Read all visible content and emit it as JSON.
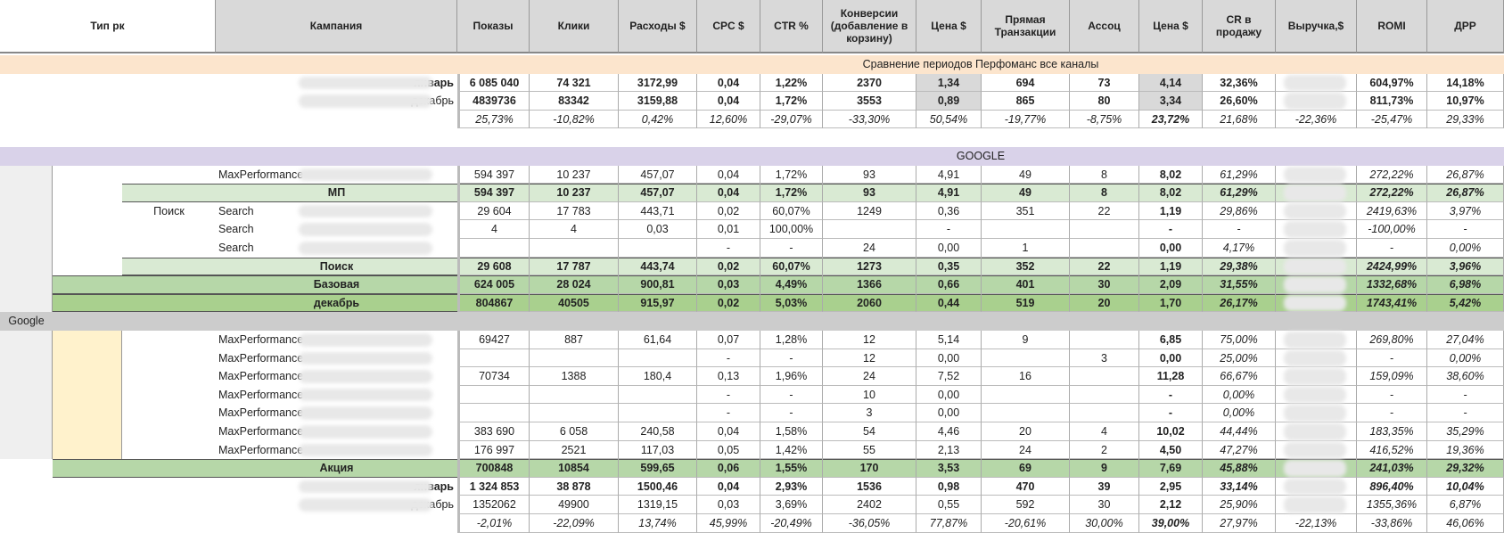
{
  "header": [
    "Тип рк",
    "Кампания",
    "Показы",
    "Клики",
    "Расходы $",
    "CPC $",
    "CTR %",
    "Конверсии (добавление в корзину)",
    "Цена $",
    "Прямая Транзакции",
    "Ассоц",
    "Цена $",
    "CR в продажу",
    "Выручка,$",
    "ROMI",
    "ДРР"
  ],
  "banner": "Сравнение периодов Перфоманс все каналы",
  "google_banner": "GOOGLE",
  "type_label": "Google",
  "group_label": "Поиск",
  "rows": [
    {
      "label": "январь",
      "cells": [
        "6 085 040",
        "74 321",
        "3172,99",
        "0,04",
        "1,22%",
        "2370",
        "1,34",
        "694",
        "73",
        "4,14",
        "32,36%",
        null,
        "604,97%",
        "14,18%"
      ]
    },
    {
      "label": "декабрь",
      "cells": [
        "4839736",
        "83342",
        "3159,88",
        "0,04",
        "1,72%",
        "3553",
        "0,89",
        "865",
        "80",
        "3,34",
        "26,60%",
        null,
        "811,73%",
        "10,97%"
      ]
    },
    {
      "label": null,
      "cells": [
        "25,73%",
        "-10,82%",
        "0,42%",
        "12,60%",
        "-29,07%",
        "-33,30%",
        "50,54%",
        "-19,77%",
        "-8,75%",
        "23,72%",
        "21,68%",
        "-22,36%",
        "-25,47%",
        "29,33%"
      ]
    },
    {
      "label": "MaxPerformance",
      "cells": [
        "594 397",
        "10 237",
        "457,07",
        "0,04",
        "1,72%",
        "93",
        "4,91",
        "49",
        "8",
        "8,02",
        "61,29%",
        null,
        "272,22%",
        "26,87%"
      ]
    },
    {
      "label": "МП",
      "cells": [
        "594 397",
        "10 237",
        "457,07",
        "0,04",
        "1,72%",
        "93",
        "4,91",
        "49",
        "8",
        "8,02",
        "61,29%",
        null,
        "272,22%",
        "26,87%"
      ]
    },
    {
      "label": "Search",
      "cells": [
        "29 604",
        "17 783",
        "443,71",
        "0,02",
        "60,07%",
        "1249",
        "0,36",
        "351",
        "22",
        "1,19",
        "29,86%",
        null,
        "2419,63%",
        "3,97%"
      ]
    },
    {
      "label": "Search",
      "cells": [
        "4",
        "4",
        "0,03",
        "0,01",
        "100,00%",
        null,
        "-",
        null,
        null,
        "-",
        "-",
        null,
        "-100,00%",
        "-"
      ]
    },
    {
      "label": "Search",
      "cells": [
        null,
        null,
        null,
        "-",
        "-",
        "24",
        "0,00",
        "1",
        null,
        "0,00",
        "4,17%",
        null,
        "-",
        "0,00%"
      ]
    },
    {
      "label": "Поиск",
      "cells": [
        "29 608",
        "17 787",
        "443,74",
        "0,02",
        "60,07%",
        "1273",
        "0,35",
        "352",
        "22",
        "1,19",
        "29,38%",
        null,
        "2424,99%",
        "3,96%"
      ]
    },
    {
      "label": "Базовая",
      "cells": [
        "624 005",
        "28 024",
        "900,81",
        "0,03",
        "4,49%",
        "1366",
        "0,66",
        "401",
        "30",
        "2,09",
        "31,55%",
        null,
        "1332,68%",
        "6,98%"
      ]
    },
    {
      "label": "декабрь",
      "cells": [
        "804867",
        "40505",
        "915,97",
        "0,02",
        "5,03%",
        "2060",
        "0,44",
        "519",
        "20",
        "1,70",
        "26,17%",
        null,
        "1743,41%",
        "5,42%"
      ]
    },
    {
      "label": "MaxPerformance",
      "cells": [
        "69427",
        "887",
        "61,64",
        "0,07",
        "1,28%",
        "12",
        "5,14",
        "9",
        null,
        "6,85",
        "75,00%",
        null,
        "269,80%",
        "27,04%"
      ]
    },
    {
      "label": "MaxPerformance",
      "cells": [
        null,
        null,
        null,
        "-",
        "-",
        "12",
        "0,00",
        null,
        "3",
        "0,00",
        "25,00%",
        null,
        "-",
        "0,00%"
      ]
    },
    {
      "label": "MaxPerformance",
      "cells": [
        "70734",
        "1388",
        "180,4",
        "0,13",
        "1,96%",
        "24",
        "7,52",
        "16",
        null,
        "11,28",
        "66,67%",
        null,
        "159,09%",
        "38,60%"
      ]
    },
    {
      "label": "MaxPerformance",
      "cells": [
        null,
        null,
        null,
        "-",
        "-",
        "10",
        "0,00",
        null,
        null,
        "-",
        "0,00%",
        null,
        "-",
        "-"
      ]
    },
    {
      "label": "MaxPerformance",
      "cells": [
        null,
        null,
        null,
        "-",
        "-",
        "3",
        "0,00",
        null,
        null,
        "-",
        "0,00%",
        null,
        "-",
        "-"
      ]
    },
    {
      "label": "MaxPerformance",
      "cells": [
        "383 690",
        "6 058",
        "240,58",
        "0,04",
        "1,58%",
        "54",
        "4,46",
        "20",
        "4",
        "10,02",
        "44,44%",
        null,
        "183,35%",
        "35,29%"
      ]
    },
    {
      "label": "MaxPerformance",
      "cells": [
        "176 997",
        "2521",
        "117,03",
        "0,05",
        "1,42%",
        "55",
        "2,13",
        "24",
        "2",
        "4,50",
        "47,27%",
        null,
        "416,52%",
        "19,36%"
      ]
    },
    {
      "label": "Акция",
      "cells": [
        "700848",
        "10854",
        "599,65",
        "0,06",
        "1,55%",
        "170",
        "3,53",
        "69",
        "9",
        "7,69",
        "45,88%",
        null,
        "241,03%",
        "29,32%"
      ]
    },
    {
      "label": "январь",
      "cells": [
        "1 324 853",
        "38 878",
        "1500,46",
        "0,04",
        "2,93%",
        "1536",
        "0,98",
        "470",
        "39",
        "2,95",
        "33,14%",
        null,
        "896,40%",
        "10,04%"
      ]
    },
    {
      "label": "декабрь",
      "cells": [
        "1352062",
        "49900",
        "1319,15",
        "0,03",
        "3,69%",
        "2402",
        "0,55",
        "592",
        "30",
        "2,12",
        "25,90%",
        null,
        "1355,36%",
        "6,87%"
      ]
    },
    {
      "label": null,
      "cells": [
        "-2,01%",
        "-22,09%",
        "13,74%",
        "45,99%",
        "-20,49%",
        "-36,05%",
        "77,87%",
        "-20,61%",
        "30,00%",
        "39,00%",
        "27,97%",
        "-22,13%",
        "-33,86%",
        "46,06%"
      ]
    }
  ]
}
